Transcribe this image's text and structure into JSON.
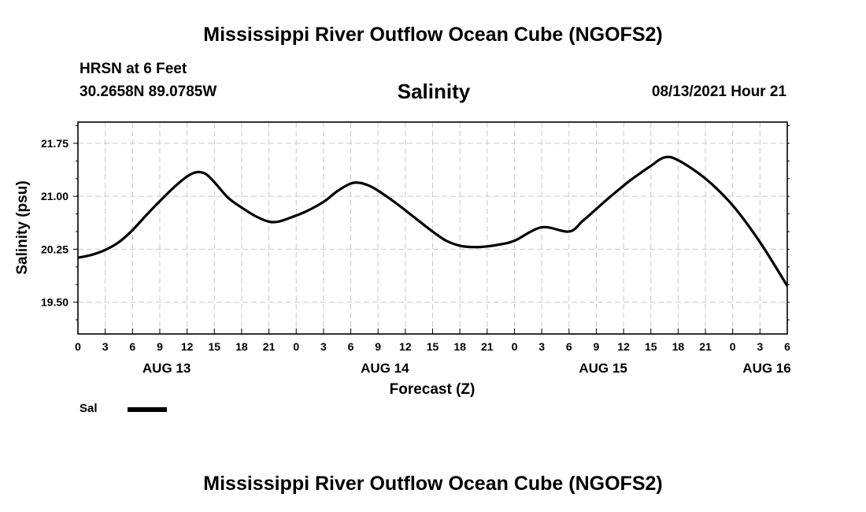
{
  "header": {
    "title": "Mississippi River Outflow Ocean Cube (NGOFS2)",
    "station": "HRSN at 6 Feet",
    "coords": "30.2658N  89.0785W",
    "datetime": "08/13/2021 Hour 21",
    "footer_title": "Mississippi River Outflow Ocean Cube (NGOFS2)"
  },
  "chart_data": {
    "type": "line",
    "title": "Salinity",
    "xlabel": "Forecast (Z)",
    "ylabel": "Salinity (psu)",
    "x_unit": "forecast hours from AUG 13 00Z",
    "xlim": [
      0,
      78
    ],
    "ylim": [
      19.05,
      22.05
    ],
    "yticks": [
      19.5,
      20.25,
      21.0,
      21.75
    ],
    "ytick_labels": [
      "19.50",
      "20.25",
      "21.00",
      "21.75"
    ],
    "xticks": [
      0,
      3,
      6,
      9,
      12,
      15,
      18,
      21,
      24,
      27,
      30,
      33,
      36,
      39,
      42,
      45,
      48,
      51,
      54,
      57,
      60,
      63,
      66,
      69,
      72,
      75,
      78
    ],
    "xtick_labels": [
      "0",
      "3",
      "6",
      "9",
      "12",
      "15",
      "18",
      "21",
      "0",
      "3",
      "6",
      "9",
      "12",
      "15",
      "18",
      "21",
      "0",
      "3",
      "6",
      "9",
      "12",
      "15",
      "18",
      "21",
      "0",
      "3",
      "6"
    ],
    "date_labels": [
      {
        "label": "AUG 13",
        "x": 9.75
      },
      {
        "label": "AUG 14",
        "x": 33.75
      },
      {
        "label": "AUG 15",
        "x": 57.75
      },
      {
        "label": "AUG 16",
        "x": 75.75
      }
    ],
    "grid": true,
    "legend_position": "bottom-left",
    "series": [
      {
        "name": "Sal",
        "color": "#000000",
        "x": [
          0,
          1.5,
          3,
          4.5,
          6,
          7.5,
          9,
          10.5,
          12,
          13,
          14,
          15,
          16.5,
          18,
          19.5,
          21,
          22,
          23,
          25,
          27,
          28.5,
          30,
          31,
          32,
          33,
          35,
          37,
          39,
          40.5,
          42,
          43.5,
          45,
          46.5,
          48,
          51,
          54,
          55.5,
          57,
          58.5,
          60,
          61,
          63,
          64.5,
          66,
          69,
          72,
          75,
          78
        ],
        "y": [
          20.13,
          20.17,
          20.24,
          20.35,
          20.52,
          20.73,
          20.93,
          21.12,
          21.28,
          21.34,
          21.32,
          21.2,
          20.98,
          20.84,
          20.72,
          20.64,
          20.64,
          20.68,
          20.78,
          20.92,
          21.07,
          21.18,
          21.19,
          21.15,
          21.08,
          20.9,
          20.7,
          20.5,
          20.37,
          20.3,
          20.28,
          20.29,
          20.32,
          20.37,
          20.56,
          20.5,
          20.65,
          20.82,
          20.99,
          21.15,
          21.25,
          21.43,
          21.55,
          21.51,
          21.25,
          20.87,
          20.35,
          19.73
        ]
      }
    ]
  }
}
